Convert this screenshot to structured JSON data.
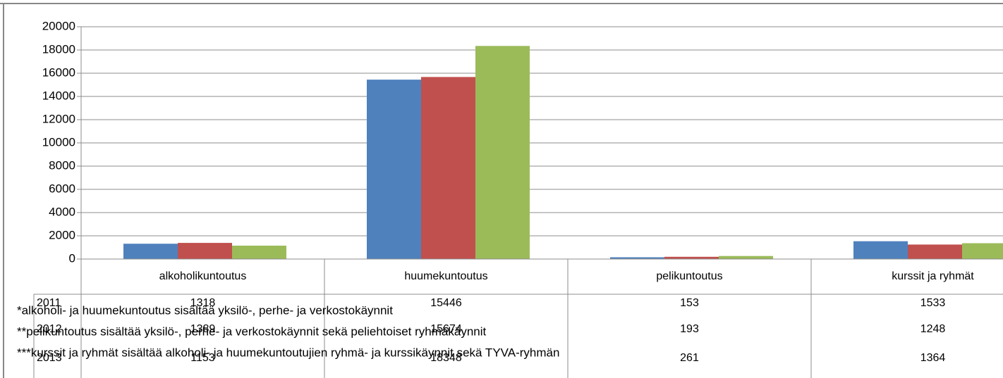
{
  "chart_data": {
    "type": "bar",
    "categories": [
      "alkoholikuntoutus",
      "huumekuntoutus",
      "pelikuntoutus",
      "kurssit ja ryhmät"
    ],
    "series": [
      {
        "name": "2011",
        "color": "#4f81bd",
        "values": [
          1318,
          15446,
          153,
          1533
        ]
      },
      {
        "name": "2012",
        "color": "#c0504d",
        "values": [
          1389,
          15674,
          193,
          1248
        ]
      },
      {
        "name": "2013",
        "color": "#9bbb59",
        "values": [
          1153,
          18348,
          261,
          1364
        ]
      }
    ],
    "ylim": [
      0,
      20000
    ],
    "yticks": [
      0,
      2000,
      4000,
      6000,
      8000,
      10000,
      12000,
      14000,
      16000,
      18000,
      20000
    ],
    "grid": true,
    "footnotes": [
      "*alkoholi- ja huumekuntoutus sisältää yksilö-, perhe- ja verkostokäynnit",
      "**pelikuntoutus sisältää yksilö-, perhe- ja verkostokäynnit sekä peliehtoiset ryhmäkäynnit",
      "***kurssit ja ryhmät sisältää alkoholi- ja huumekuntoutujien ryhmä- ja kurssikäynnit sekä TYVA-ryhmän"
    ]
  }
}
